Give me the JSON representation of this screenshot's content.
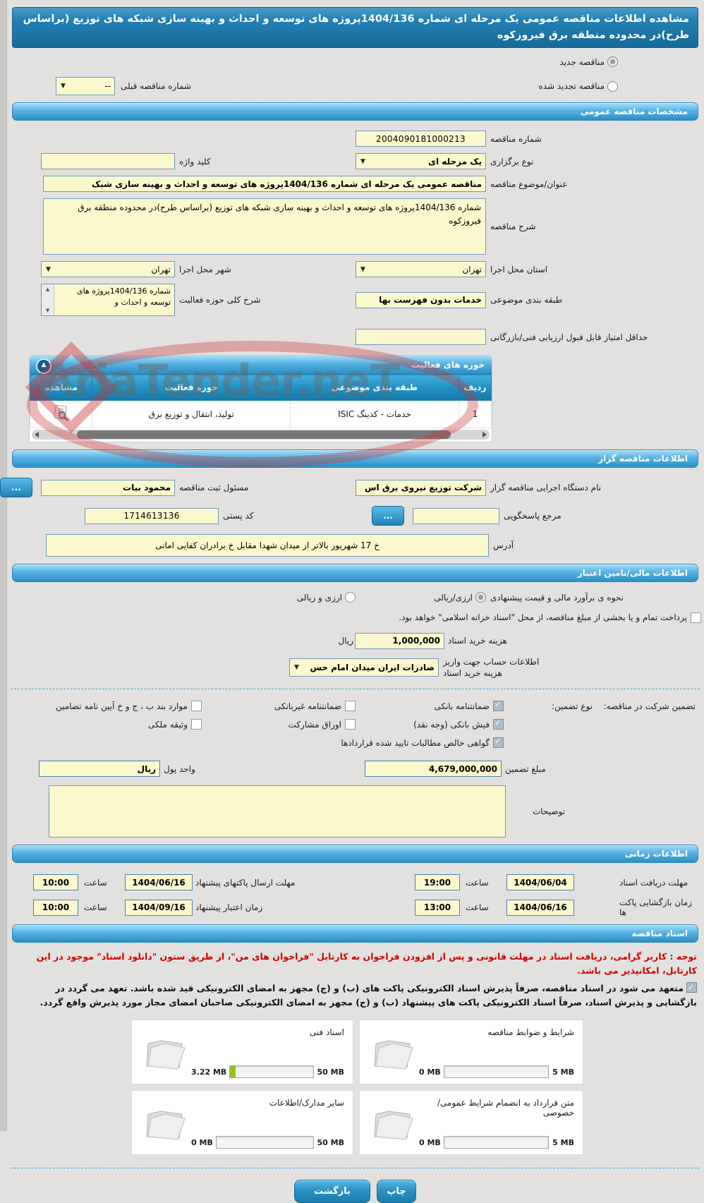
{
  "watermark": "AriaTender.neT",
  "title": "مشاهده اطلاعات مناقصه عمومی یک مرحله ای شماره 1404/136پروژه های توسعه و احداث و بهینه سازی شبکه های توزیع (براساس طرح)در محدوده منطقه برق فیروزکوه",
  "top": {
    "new_label": "مناقصه جدید",
    "new_checked": true,
    "renewed_label": "مناقصه تجدید شده",
    "renewed_checked": false,
    "prev_label": "شماره مناقصه قبلی",
    "prev_value": "--"
  },
  "sec": {
    "general": "مشخصات مناقصه عمومی",
    "announcer": "اطلاعات مناقصه گزار",
    "financial": "اطلاعات مالی/تامین اعتبار",
    "timing": "اطلاعات زمانی",
    "docs": "اسناد مناقصه"
  },
  "gen": {
    "no_l": "شماره مناقصه",
    "no_v": "2004090181000213",
    "type_l": "نوع برگزاری",
    "type_v": "یک مرحله ای",
    "kw_l": "کلید واژه",
    "kw_v": "",
    "subj_l": "عنوان/موضوع مناقصه",
    "subj_v": "مناقصه عمومی یک مرحله ای شماره 1404/136پروژه های توسعه و احداث و بهینه سازی شبک",
    "desc_l": "شرح مناقصه",
    "desc_v": "شماره 1404/136پروژه های توسعه و احداث و بهینه سازی شبکه های توزیع (براساس طرح)در محدوده منطقه برق فیروزکوه",
    "prov_l": "استان محل اجرا",
    "prov_v": "تهران",
    "city_l": "شهر محل اجرا",
    "city_v": "تهران",
    "cat_l": "طبقه بندی موضوعی",
    "cat_v": "خدمات بدون فهرست بها",
    "scope_l": "شرح کلی حوزه فعالیت",
    "scope_v": "شماره 1404/136پروژه های توسعه و احداث و",
    "score_l": "حداقل امتیاز قابل قبول ارزیابی فنی/بازرگانی"
  },
  "table": {
    "title": "حوزه های فعالیت",
    "h_row": "ردیف",
    "h_cat": "طبقه بندی موضوعی",
    "h_field": "حوزه فعالیت",
    "h_view": "مشاهده",
    "r_no": "1",
    "r_cat": "خدمات - کدینگ ISIC",
    "r_field": "تولید، انتقال و توزیع برق"
  },
  "ann": {
    "agency_l": "نام دستگاه اجرایی مناقصه گزار",
    "agency_v": "شرکت توزیع نیروی برق اس",
    "reg_l": "مسئول ثبت مناقصه",
    "reg_v": "محمود  بیات",
    "dots": "...",
    "ref_l": "مرجع پاسخگویی",
    "ref_v": "",
    "postal_l": "کد پستی",
    "postal_v": "1714613136",
    "addr_l": "آدرس",
    "addr_v": "خ 17 شهریور بالاتر از میدان شهدا مقابل خ برادران کفایی امانی"
  },
  "fin": {
    "est_l": "نحوه ی برآورد مالی و قیمت پیشنهادی",
    "opt1": "ارزی/ریالی",
    "opt1_checked": true,
    "opt2": "ارزی و ریالی",
    "opt2_checked": false,
    "treasury": "پرداخت تمام و یا بخشی از مبلغ مناقصه، از محل \"اسناد خزانه اسلامی\" خواهد بود.",
    "treasury_checked": false,
    "fee_l": "هزینه خرید اسناد",
    "fee_v": "1,000,000",
    "fee_u": "ریال",
    "acc_l": "اطلاعات حساب جهت واریز هزینه خرید اسناد",
    "acc_v": "صادرات ایران میدان امام حس",
    "g_l": "تضمین شرکت در مناقصه:",
    "g_t": "نوع تضمین:",
    "opts": [
      {
        "label": "ضمانتنامه بانکی",
        "checked": true
      },
      {
        "label": "ضمانتنامه غیربانکی",
        "checked": false
      },
      {
        "label": "موارد بند ب ، ج و خ آیین نامه تضامین",
        "checked": false
      },
      {
        "label": "فیش بانکی (وجه نقد)",
        "checked": true
      },
      {
        "label": "اوراق مشارکت",
        "checked": false
      },
      {
        "label": "وثیقه ملکی",
        "checked": false
      },
      {
        "label": "گواهی خالص مطالبات تایید شده قراردادها",
        "checked": true
      }
    ],
    "amt_l": "مبلغ تضمین",
    "amt_v": "4,679,000,000",
    "cur_l": "واحد پول",
    "cur_v": "ریال",
    "notes_l": "توضیحات",
    "notes_v": ""
  },
  "time": {
    "hour": "ساعت",
    "rows": [
      {
        "l1": "مهلت دریافت اسناد",
        "d1": "1404/06/04",
        "t1": "19:00",
        "l2": "مهلت ارسال پاکتهای پیشنهاد",
        "d2": "1404/06/16",
        "t2": "10:00"
      },
      {
        "l1": "زمان بازگشایی پاکت ها",
        "d1": "1404/06/16",
        "t1": "13:00",
        "l2": "زمان اعتبار پیشنهاد",
        "d2": "1404/09/16",
        "t2": "10:00"
      }
    ]
  },
  "docs": {
    "notice": "توجه : کاربر گرامی، دریافت اسناد در مهلت قانونی و پس از افزودن فراخوان به کارتابل \"فراخوان های من\"، از طریق ستون \"دانلود اسناد\" موجود در این کارتابل، امکانپذیر می باشد.",
    "commit": "متعهد می شود در اسناد مناقصه، صرفاً پذیرش اسناد الکترونیکی پاکت های (ب) و (ج) مجهز به امضای الکترونیکی قید شده باشد. تعهد می گردد در بازگشایی و پذیرش اسناد، صرفاً اسناد الکترونیکی پاکت های پیشنهاد (ب) و (ج) مجهز به امضای الکترونیکی صاحبان امضای مجاز مورد پذیرش واقع گردد.",
    "commit_checked": true,
    "files": [
      {
        "label": "شرایط و ضوابط مناقصه",
        "used": "0 MB",
        "max": "5 MB",
        "pct": 0
      },
      {
        "label": "اسناد فنی",
        "used": "3.22 MB",
        "max": "50 MB",
        "pct": 6.4
      },
      {
        "label": "متن قرارداد به انضمام شرایط عمومی/خصوصی",
        "used": "0 MB",
        "max": "5 MB",
        "pct": 0
      },
      {
        "label": "سایر مدارک/اطلاعات",
        "used": "0 MB",
        "max": "50 MB",
        "pct": 0
      }
    ]
  },
  "btns": {
    "print": "چاپ",
    "back": "بازگشت"
  }
}
